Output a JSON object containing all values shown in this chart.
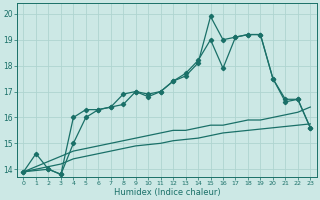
{
  "xlabel": "Humidex (Indice chaleur)",
  "bg_color": "#cce8e5",
  "grid_color": "#afd4d0",
  "line_color": "#1a7068",
  "xlim": [
    -0.5,
    23.5
  ],
  "ylim": [
    13.7,
    20.4
  ],
  "yticks": [
    14,
    15,
    16,
    17,
    18,
    19,
    20
  ],
  "xticks": [
    0,
    1,
    2,
    3,
    4,
    5,
    6,
    7,
    8,
    9,
    10,
    11,
    12,
    13,
    14,
    15,
    16,
    17,
    18,
    19,
    20,
    21,
    22,
    23
  ],
  "series": [
    {
      "x": [
        0,
        1,
        2,
        3,
        4,
        5,
        6,
        7,
        8,
        9,
        10,
        11,
        12,
        13,
        14,
        15,
        16,
        17,
        18,
        19,
        20,
        21,
        22,
        23
      ],
      "y": [
        13.9,
        14.6,
        14.0,
        13.8,
        16.0,
        16.3,
        16.3,
        16.4,
        16.9,
        17.0,
        16.8,
        17.0,
        17.4,
        17.6,
        18.1,
        19.9,
        19.0,
        19.1,
        19.2,
        19.2,
        17.5,
        16.7,
        16.7,
        15.6
      ],
      "marker": true
    },
    {
      "x": [
        0,
        2,
        3,
        4,
        5,
        6,
        7,
        8,
        9,
        10,
        11,
        12,
        13,
        14,
        15,
        16,
        17,
        18,
        19,
        20,
        21,
        22,
        23
      ],
      "y": [
        13.9,
        14.0,
        13.8,
        15.0,
        16.0,
        16.3,
        16.4,
        16.5,
        17.0,
        16.9,
        17.0,
        17.4,
        17.7,
        18.2,
        19.0,
        17.9,
        19.1,
        19.2,
        19.2,
        17.5,
        16.6,
        16.7,
        15.6
      ],
      "marker": true
    },
    {
      "x": [
        0,
        1,
        2,
        3,
        4,
        5,
        6,
        7,
        8,
        9,
        10,
        11,
        12,
        13,
        14,
        15,
        16,
        17,
        18,
        19,
        20,
        21,
        22,
        23
      ],
      "y": [
        13.9,
        14.1,
        14.3,
        14.5,
        14.7,
        14.8,
        14.9,
        15.0,
        15.1,
        15.2,
        15.3,
        15.4,
        15.5,
        15.5,
        15.6,
        15.7,
        15.7,
        15.8,
        15.9,
        15.9,
        16.0,
        16.1,
        16.2,
        16.4
      ],
      "marker": false
    },
    {
      "x": [
        0,
        1,
        2,
        3,
        4,
        5,
        6,
        7,
        8,
        9,
        10,
        11,
        12,
        13,
        14,
        15,
        16,
        17,
        18,
        19,
        20,
        21,
        22,
        23
      ],
      "y": [
        13.9,
        14.0,
        14.1,
        14.2,
        14.4,
        14.5,
        14.6,
        14.7,
        14.8,
        14.9,
        14.95,
        15.0,
        15.1,
        15.15,
        15.2,
        15.3,
        15.4,
        15.45,
        15.5,
        15.55,
        15.6,
        15.65,
        15.7,
        15.75
      ],
      "marker": false
    }
  ]
}
